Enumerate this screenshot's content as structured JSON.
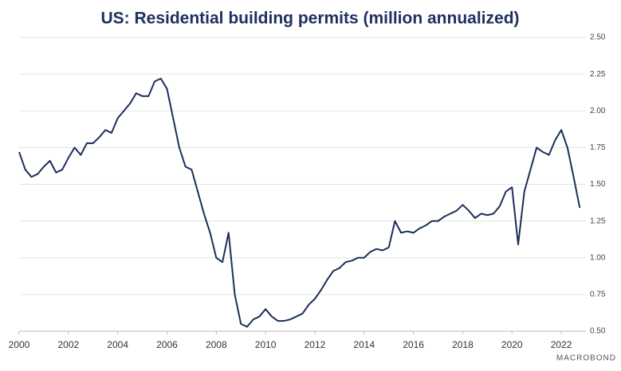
{
  "chart_data": {
    "type": "line",
    "title": "US: Residential building permits (million annualized)",
    "logo": "MACROBOND",
    "x": [
      2000,
      2000.25,
      2000.5,
      2000.75,
      2001,
      2001.25,
      2001.5,
      2001.75,
      2002,
      2002.25,
      2002.5,
      2002.75,
      2003,
      2003.25,
      2003.5,
      2003.75,
      2004,
      2004.25,
      2004.5,
      2004.75,
      2005,
      2005.25,
      2005.5,
      2005.75,
      2006,
      2006.25,
      2006.5,
      2006.75,
      2007,
      2007.25,
      2007.5,
      2007.75,
      2008,
      2008.25,
      2008.5,
      2008.75,
      2009,
      2009.25,
      2009.5,
      2009.75,
      2010,
      2010.25,
      2010.5,
      2010.75,
      2011,
      2011.25,
      2011.5,
      2011.75,
      2012,
      2012.25,
      2012.5,
      2012.75,
      2013,
      2013.25,
      2013.5,
      2013.75,
      2014,
      2014.25,
      2014.5,
      2014.75,
      2015,
      2015.25,
      2015.5,
      2015.75,
      2016,
      2016.25,
      2016.5,
      2016.75,
      2017,
      2017.25,
      2017.5,
      2017.75,
      2018,
      2018.25,
      2018.5,
      2018.75,
      2019,
      2019.25,
      2019.5,
      2019.75,
      2020,
      2020.25,
      2020.5,
      2020.75,
      2021,
      2021.25,
      2021.5,
      2021.75,
      2022,
      2022.25,
      2022.5,
      2022.75
    ],
    "series": [
      {
        "name": "Residential building permits",
        "color": "#1b2f5a",
        "values": [
          1.72,
          1.6,
          1.55,
          1.57,
          1.62,
          1.66,
          1.58,
          1.6,
          1.68,
          1.75,
          1.7,
          1.78,
          1.78,
          1.82,
          1.87,
          1.85,
          1.95,
          2.0,
          2.05,
          2.12,
          2.1,
          2.1,
          2.2,
          2.22,
          2.15,
          1.95,
          1.75,
          1.62,
          1.6,
          1.45,
          1.3,
          1.17,
          1.0,
          0.97,
          1.17,
          0.75,
          0.55,
          0.53,
          0.58,
          0.6,
          0.65,
          0.6,
          0.57,
          0.57,
          0.58,
          0.6,
          0.62,
          0.68,
          0.72,
          0.78,
          0.85,
          0.91,
          0.93,
          0.97,
          0.98,
          1.0,
          1.0,
          1.04,
          1.06,
          1.05,
          1.07,
          1.25,
          1.17,
          1.18,
          1.17,
          1.2,
          1.22,
          1.25,
          1.25,
          1.28,
          1.3,
          1.32,
          1.36,
          1.32,
          1.27,
          1.3,
          1.29,
          1.3,
          1.35,
          1.45,
          1.48,
          1.09,
          1.45,
          1.6,
          1.75,
          1.72,
          1.7,
          1.8,
          1.87,
          1.75,
          1.55,
          1.34
        ]
      }
    ],
    "xlim": [
      2000,
      2023
    ],
    "xticks": [
      2000,
      2002,
      2004,
      2006,
      2008,
      2010,
      2012,
      2014,
      2016,
      2018,
      2020,
      2022
    ],
    "ylim": [
      0.5,
      2.5
    ],
    "yticks": [
      {
        "value": 0.5,
        "label": "0.50"
      },
      0.75,
      {
        "value": 1,
        "label": "1.00"
      },
      1.25,
      {
        "value": 1.5,
        "label": "1.50"
      },
      1.75,
      {
        "value": 2,
        "label": "2.00"
      },
      2.25,
      {
        "value": 2.5,
        "label": "2.50"
      }
    ],
    "grid": true
  }
}
